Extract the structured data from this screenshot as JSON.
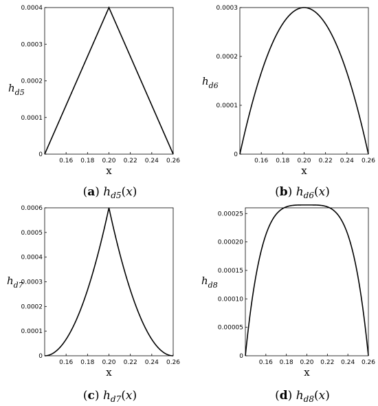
{
  "chart_data": [
    {
      "type": "line",
      "panel": "(a)",
      "caption": {
        "label": "a",
        "func": "h",
        "sub": "d5",
        "arg": "(x)"
      },
      "xlabel": "x",
      "ylabel": {
        "main": "h",
        "sub": "d5"
      },
      "xlim": [
        0.14,
        0.26
      ],
      "ylim": [
        0,
        0.0004
      ],
      "xticks": [
        "0.16",
        "0.18",
        "0.20",
        "0.22",
        "0.24",
        "0.26"
      ],
      "yticks": [
        "0",
        "0.0001",
        "0.0002",
        "0.0003",
        "0.0004"
      ],
      "shape": "triangle",
      "peak": 0.0004,
      "x": [
        0.14,
        0.2,
        0.26
      ],
      "y": [
        0,
        0.0004,
        0
      ]
    },
    {
      "type": "line",
      "panel": "(b)",
      "caption": {
        "label": "b",
        "func": "h",
        "sub": "d6",
        "arg": "(x)"
      },
      "xlabel": "x",
      "ylabel": {
        "main": "h",
        "sub": "d6"
      },
      "xlim": [
        0.14,
        0.26
      ],
      "ylim": [
        0,
        0.0003
      ],
      "xticks": [
        "0.16",
        "0.18",
        "0.20",
        "0.22",
        "0.24",
        "0.26"
      ],
      "yticks": [
        "0",
        "0.0001",
        "0.0002",
        "0.0003"
      ],
      "shape": "parabola",
      "peak": 0.0003,
      "x": [
        0.14,
        0.15,
        0.16,
        0.17,
        0.18,
        0.19,
        0.2,
        0.21,
        0.22,
        0.23,
        0.24,
        0.25,
        0.26
      ],
      "y": [
        0,
        8.33e-05,
        0.0001667,
        0.0002083,
        0.0002667,
        0.0002917,
        0.0003,
        0.0002917,
        0.0002667,
        0.0002083,
        0.0001667,
        8.33e-05,
        0
      ]
    },
    {
      "type": "line",
      "panel": "(c)",
      "caption": {
        "label": "c",
        "func": "h",
        "sub": "d7",
        "arg": "(x)"
      },
      "xlabel": "x",
      "ylabel": {
        "main": "h",
        "sub": "d7"
      },
      "xlim": [
        0.14,
        0.26
      ],
      "ylim": [
        0,
        0.0006
      ],
      "xticks": [
        "0.16",
        "0.18",
        "0.20",
        "0.22",
        "0.24",
        "0.26"
      ],
      "yticks": [
        "0",
        "0.0001",
        "0.0002",
        "0.0003",
        "0.0004",
        "0.0005",
        "0.0006"
      ],
      "shape": "cusp",
      "peak": 0.0006,
      "x": [
        0.14,
        0.16,
        0.18,
        0.19,
        0.2,
        0.21,
        0.22,
        0.24,
        0.26
      ],
      "y": [
        0,
        6.67e-05,
        0.0002667,
        0.0004167,
        0.0006,
        0.0004167,
        0.0002667,
        6.67e-05,
        0
      ]
    },
    {
      "type": "line",
      "panel": "(d)",
      "caption": {
        "label": "d",
        "func": "h",
        "sub": "d8",
        "arg": "(x)"
      },
      "xlabel": "x",
      "ylabel": {
        "main": "h",
        "sub": "d8"
      },
      "xlim": [
        0.14,
        0.26
      ],
      "ylim": [
        0,
        0.00026
      ],
      "xticks": [
        "0.16",
        "0.18",
        "0.20",
        "0.22",
        "0.24",
        "0.26"
      ],
      "yticks": [
        "0",
        "0.00005",
        "0.00010",
        "0.00015",
        "0.00020",
        "0.00025"
      ],
      "shape": "quartic",
      "peak": 0.000265,
      "x": [
        0.14,
        0.15,
        0.16,
        0.18,
        0.2,
        0.22,
        0.24,
        0.25,
        0.26
      ],
      "y": [
        0,
        0.000138,
        0.000209,
        0.000262,
        0.000265,
        0.000262,
        0.000209,
        0.000138,
        0
      ]
    }
  ]
}
